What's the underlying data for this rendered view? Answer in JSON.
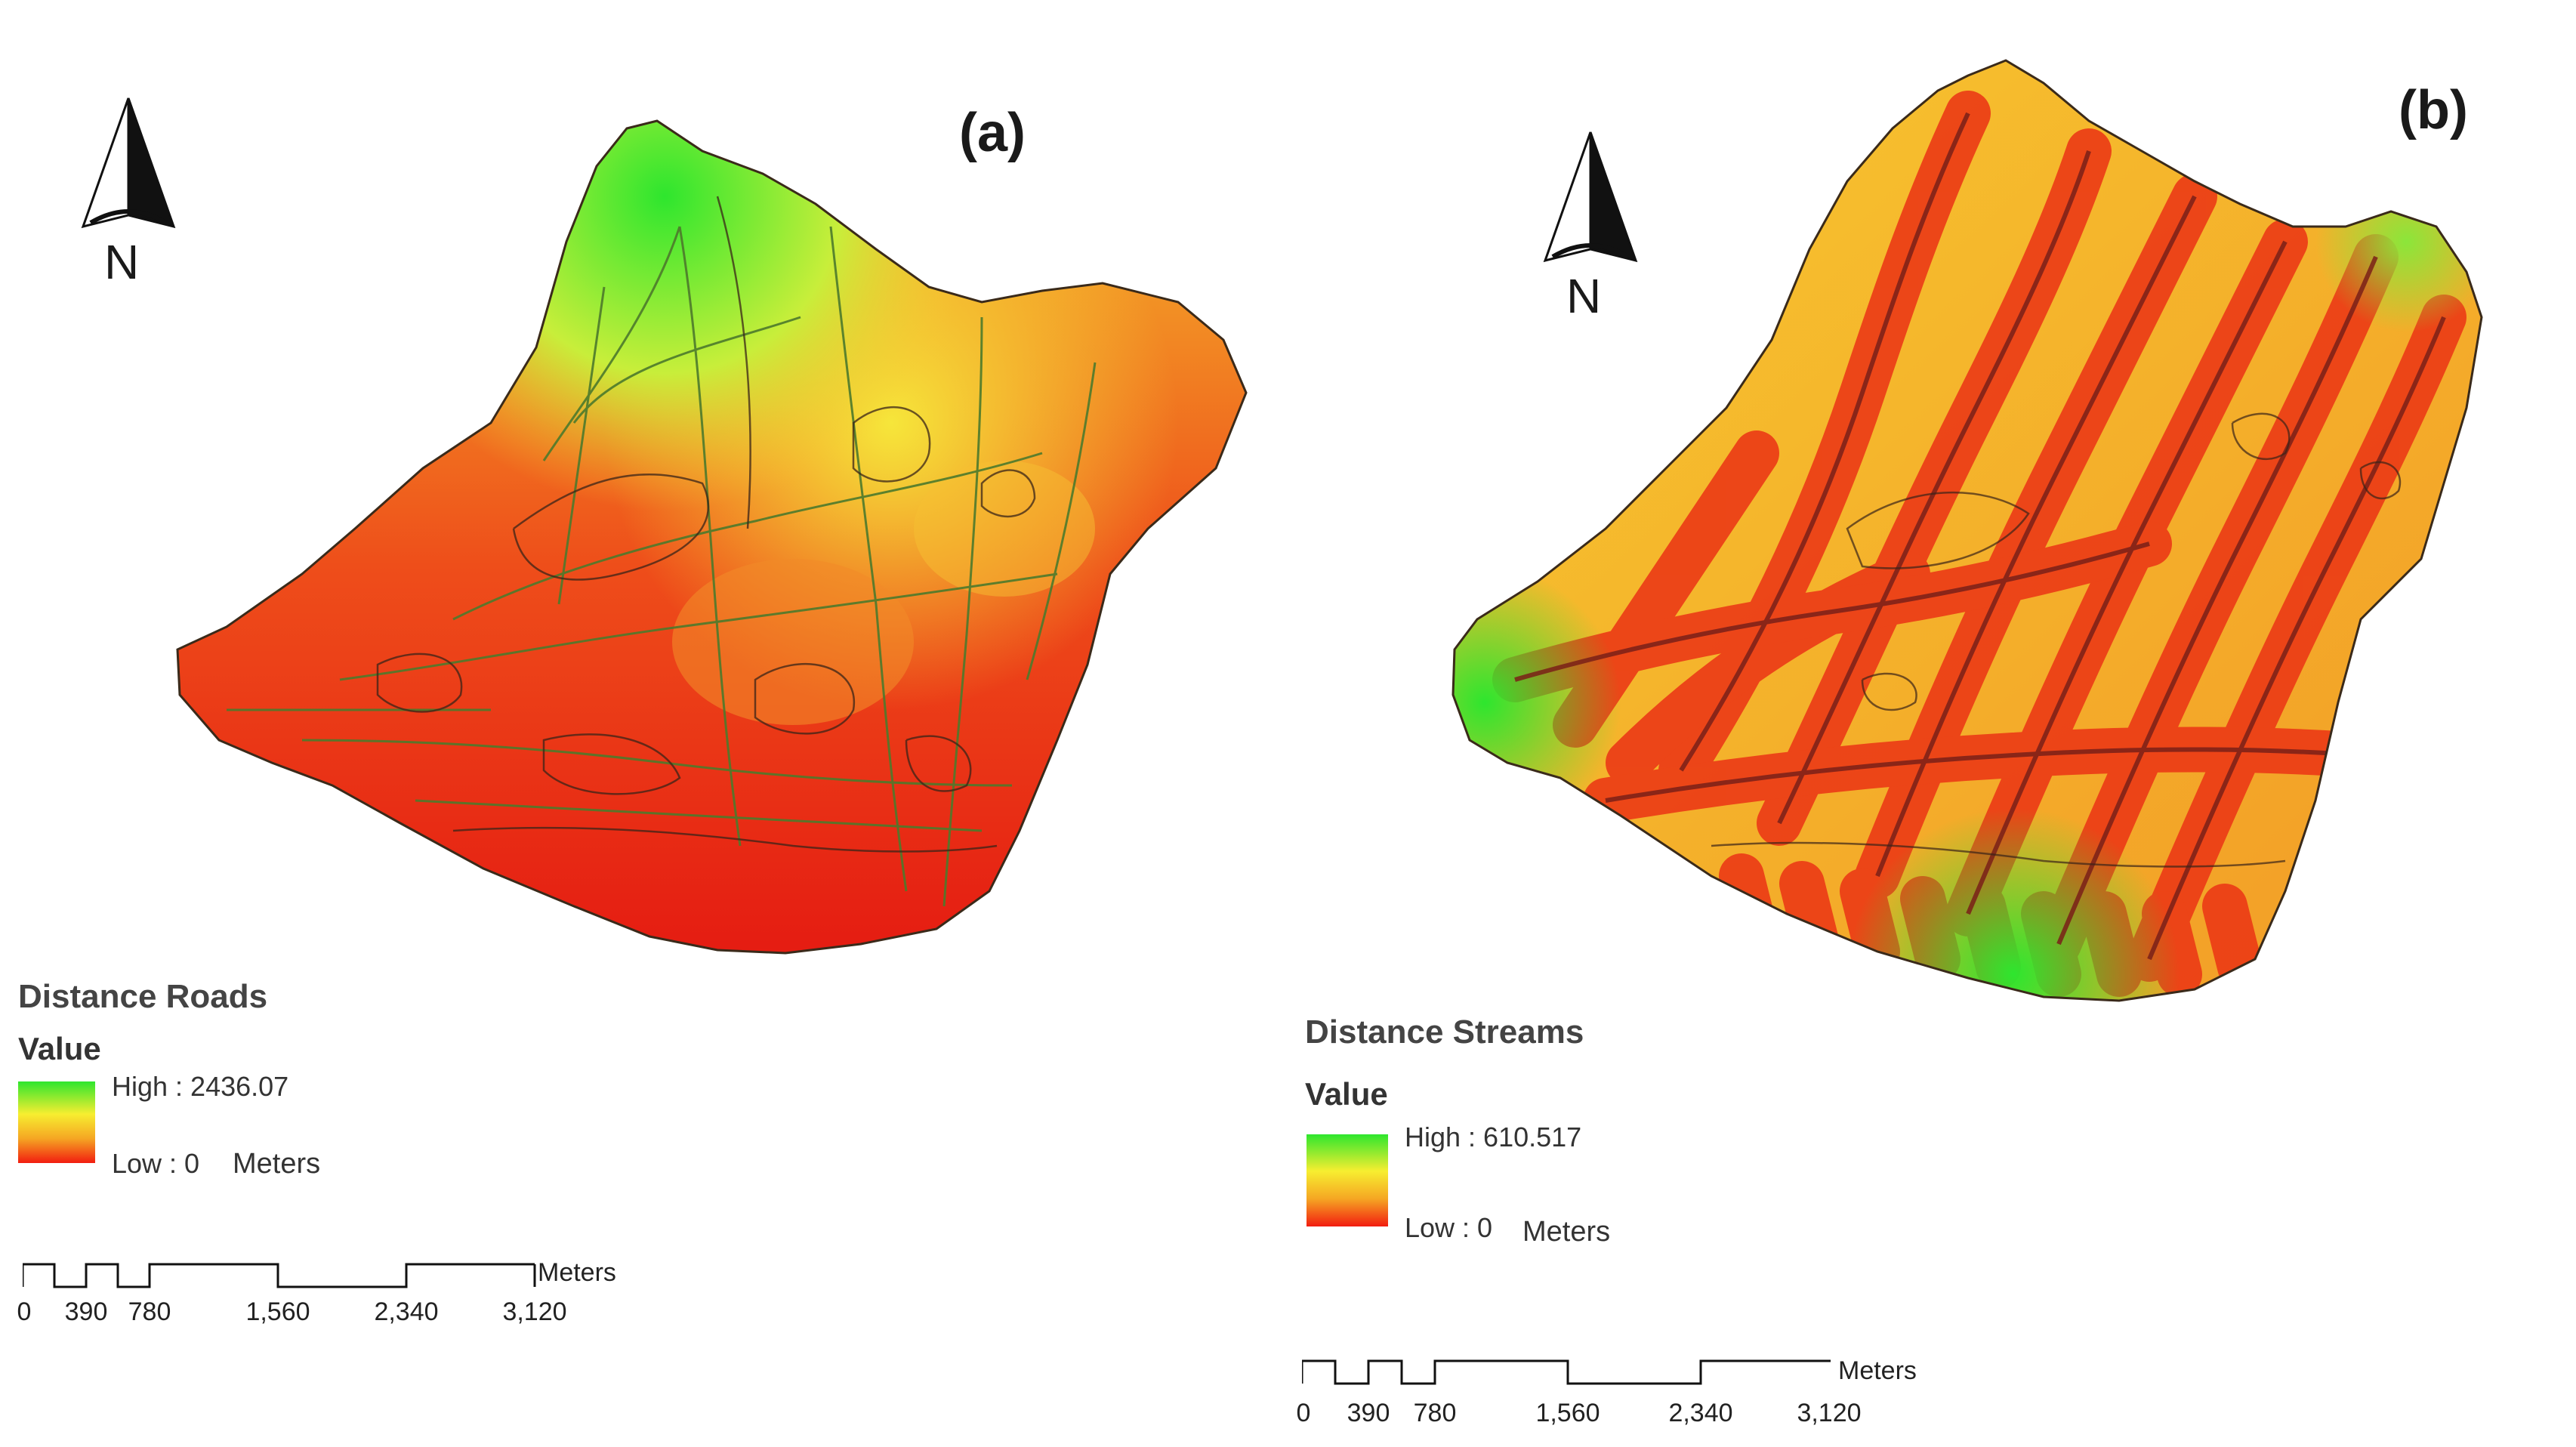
{
  "panels": [
    {
      "label": "(a)",
      "north_label": "N",
      "legend": {
        "title": "Distance Roads",
        "value_label": "Value",
        "high": "High : 2436.07",
        "low": "Low : 0",
        "units": "Meters"
      },
      "scale": {
        "ticks": [
          "0",
          "390",
          "780",
          "1,560",
          "2,340",
          "3,120"
        ],
        "unit": "Meters"
      }
    },
    {
      "label": "(b)",
      "north_label": "N",
      "legend": {
        "title": "Distance Streams",
        "value_label": "Value",
        "high": "High : 610.517",
        "low": "Low : 0",
        "units": "Meters"
      },
      "scale": {
        "ticks": [
          "0",
          "390",
          "780",
          "1,560",
          "2,340",
          "3,120"
        ],
        "unit": "Meters"
      }
    }
  ],
  "colors": {
    "high": "#2ee62e",
    "mid": "#f7ee30",
    "low": "#f21d10",
    "road_lines": "#4a7a2a",
    "boundary": "#3a2a1a"
  }
}
